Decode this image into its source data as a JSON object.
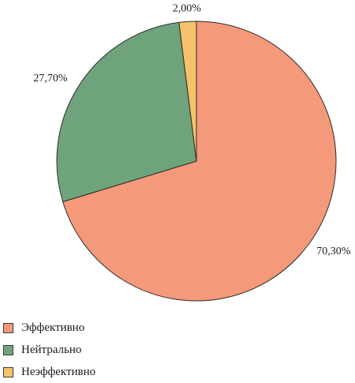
{
  "chart_data": {
    "type": "pie",
    "title": "",
    "start_angle_deg": 0,
    "direction": "clockwise",
    "legend_position": "bottom-left",
    "slices": [
      {
        "name": "Эффективно",
        "value": 70.3,
        "label": "70,30%",
        "color": "#F4997A"
      },
      {
        "name": "Нейтрально",
        "value": 27.7,
        "label": "27,70%",
        "color": "#6FA37C"
      },
      {
        "name": "Неэффективно",
        "value": 2.0,
        "label": "2,00%",
        "color": "#F5C26B"
      }
    ]
  },
  "legend": {
    "items": [
      {
        "label": "Эффективно",
        "color": "#F4997A"
      },
      {
        "label": "Нейтрально",
        "color": "#6FA37C"
      },
      {
        "label": "Неэффективно",
        "color": "#F5C26B"
      }
    ]
  }
}
